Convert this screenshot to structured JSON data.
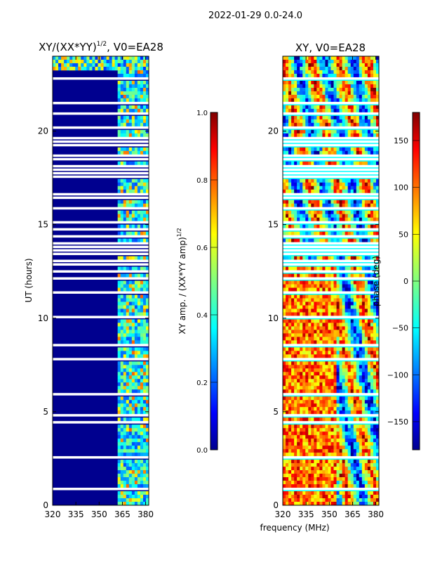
{
  "suptitle": "2022-01-29 0.0-24.0",
  "shared_xlabel": "frequency (MHz)",
  "colors": {
    "jet": [
      "#00008f",
      "#0000ff",
      "#0080ff",
      "#00ffff",
      "#80ff80",
      "#ffff00",
      "#ff8000",
      "#ff0000",
      "#800000"
    ],
    "gap": "#ffffff",
    "axis": "#000000"
  },
  "chart_data": [
    {
      "type": "heatmap",
      "title_main": "XY/(XX*YY)",
      "title_exp": "1/2",
      "title_tail": ", V0=EA28",
      "xlabel": "",
      "ylabel": "UT (hours)",
      "xlim": [
        320,
        382
      ],
      "ylim": [
        0,
        24
      ],
      "xticks": [
        320,
        335,
        350,
        365,
        380
      ],
      "yticks": [
        0,
        5,
        10,
        15,
        20
      ],
      "colorbar": {
        "label_main": "XY amp. / (XX*YY amp)",
        "label_exp": "1/2",
        "range": [
          0,
          1.0
        ],
        "ticks": [
          "0.0",
          "0.2",
          "0.4",
          "0.6",
          "0.8",
          "1.0"
        ]
      }
    },
    {
      "type": "heatmap",
      "title": "XY, V0=EA28",
      "xlabel": "",
      "ylabel": "",
      "xlim": [
        320,
        382
      ],
      "ylim": [
        0,
        24
      ],
      "xticks": [
        320,
        335,
        350,
        365,
        380
      ],
      "yticks": [
        0,
        5,
        10,
        15,
        20
      ],
      "colorbar": {
        "label": "phase (deg)",
        "range": [
          -180,
          180
        ],
        "ticks": [
          "−150",
          "−100",
          "−50",
          "0",
          "50",
          "100",
          "150"
        ]
      }
    }
  ]
}
